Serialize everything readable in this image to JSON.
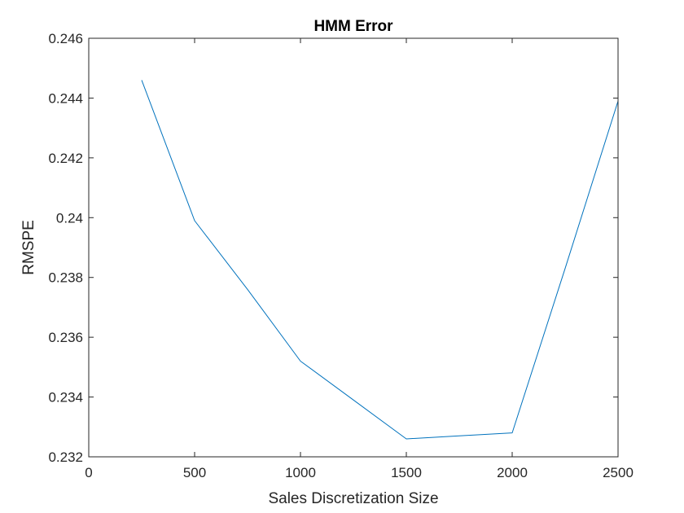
{
  "chart_data": {
    "type": "line",
    "title": "HMM Error",
    "xlabel": "Sales Discretization Size",
    "ylabel": "RMSPE",
    "xlim": [
      0,
      2500
    ],
    "ylim": [
      0.232,
      0.246
    ],
    "x_ticks": [
      "0",
      "500",
      "1000",
      "1500",
      "2000",
      "2500"
    ],
    "y_ticks": [
      "0.232",
      "0.234",
      "0.236",
      "0.238",
      "0.24",
      "0.242",
      "0.244",
      "0.246"
    ],
    "grid": false,
    "series": [
      {
        "color": "#0072BD",
        "x": [
          250,
          500,
          750,
          1000,
          1250,
          1500,
          1750,
          2000,
          2250,
          2500
        ],
        "y": [
          0.2446,
          0.2399,
          0.2376,
          0.2352,
          0.2339,
          0.2326,
          0.2327,
          0.2328,
          0.2383,
          0.2439
        ]
      }
    ]
  }
}
